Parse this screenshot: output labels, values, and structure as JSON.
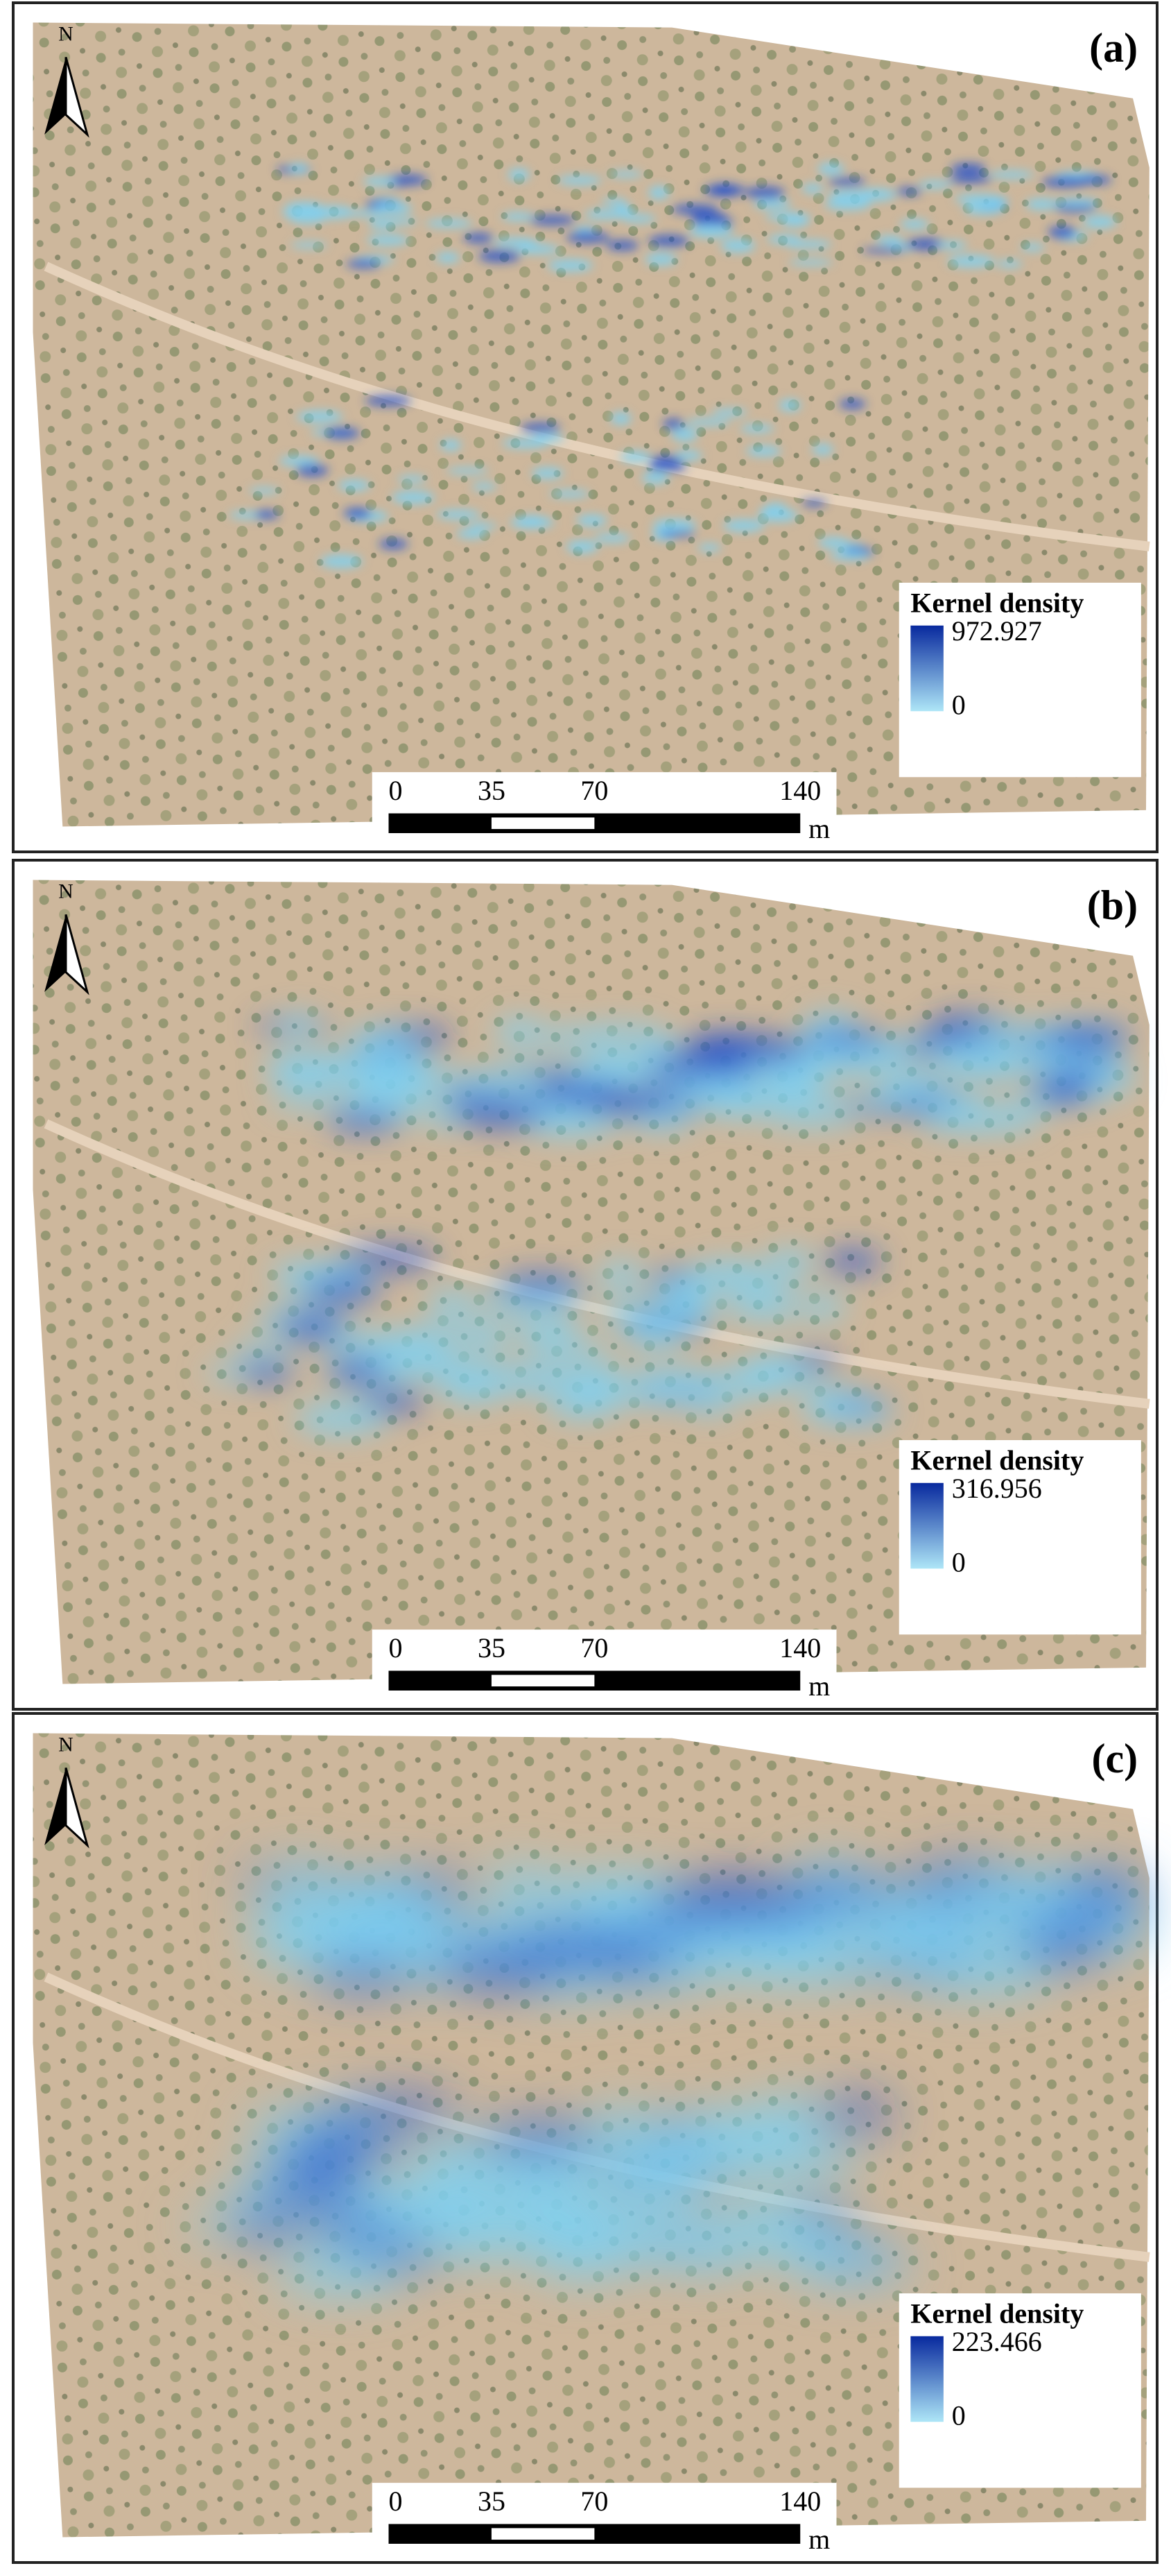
{
  "north": "N",
  "scale": {
    "ticks": [
      0,
      35,
      70,
      140
    ],
    "unit": "m"
  },
  "panels": [
    {
      "label": "(a)",
      "legend_title": "Kernel density",
      "legend_max": 972.927,
      "legend_min": 0
    },
    {
      "label": "(b)",
      "legend_title": "Kernel density",
      "legend_max": 316.956,
      "legend_min": 0
    },
    {
      "label": "(c)",
      "legend_title": "Kernel density",
      "legend_max": 223.466,
      "legend_min": 0
    }
  ]
}
